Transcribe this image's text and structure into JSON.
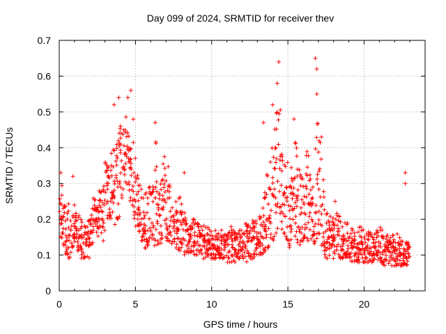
{
  "chart_data": {
    "type": "scatter",
    "title": "Day 099 of 2024, SRMTID for receiver thev",
    "xlabel": "GPS time / hours",
    "ylabel": "SRMTID / TECUs",
    "xlim": [
      0,
      24
    ],
    "ylim": [
      0,
      0.7
    ],
    "xticks": [
      0,
      5,
      10,
      15,
      20
    ],
    "xtick_labels": [
      "0",
      "5",
      "10",
      "15",
      "20"
    ],
    "yticks": [
      0,
      0.1,
      0.2,
      0.3,
      0.4,
      0.5,
      0.6,
      0.7
    ],
    "ytick_labels": [
      "0",
      "0.1",
      "0.2",
      "0.3",
      "0.4",
      "0.5",
      "0.6",
      "0.7"
    ],
    "grid": true,
    "marker": "+",
    "color": "#ff0000",
    "series": [
      {
        "name": "SRMTID",
        "x": [
          0.0,
          0.2,
          0.4,
          0.6,
          0.8,
          1.0,
          1.2,
          1.4,
          1.6,
          1.8,
          2.0,
          2.2,
          2.4,
          2.6,
          2.8,
          3.0,
          3.2,
          3.4,
          3.6,
          3.8,
          4.0,
          4.2,
          4.4,
          4.6,
          4.8,
          5.0,
          5.2,
          5.4,
          5.6,
          5.8,
          6.0,
          6.2,
          6.4,
          6.6,
          6.8,
          7.0,
          7.2,
          7.4,
          7.6,
          7.8,
          8.0,
          8.2,
          8.4,
          8.6,
          8.8,
          9.0,
          9.2,
          9.4,
          9.6,
          9.8,
          10.0,
          10.2,
          10.4,
          10.6,
          10.8,
          11.0,
          11.2,
          11.4,
          11.6,
          11.8,
          12.0,
          12.2,
          12.4,
          12.6,
          12.8,
          13.0,
          13.2,
          13.4,
          13.6,
          13.8,
          14.0,
          14.2,
          14.4,
          14.6,
          14.8,
          15.0,
          15.2,
          15.4,
          15.6,
          15.8,
          16.0,
          16.2,
          16.4,
          16.6,
          16.8,
          17.0,
          17.2,
          17.4,
          17.6,
          17.8,
          18.0,
          18.2,
          18.4,
          18.6,
          18.8,
          19.0,
          19.2,
          19.4,
          19.6,
          19.8,
          20.0,
          20.2,
          20.4,
          20.6,
          20.8,
          21.0,
          21.2,
          21.4,
          21.6,
          21.8,
          22.0,
          22.2,
          22.4,
          22.6,
          22.8
        ],
        "lo": [
          0.14,
          0.1,
          0.1,
          0.09,
          0.12,
          0.13,
          0.11,
          0.09,
          0.09,
          0.09,
          0.13,
          0.16,
          0.15,
          0.16,
          0.14,
          0.19,
          0.2,
          0.22,
          0.18,
          0.2,
          0.25,
          0.3,
          0.28,
          0.24,
          0.2,
          0.18,
          0.16,
          0.14,
          0.12,
          0.12,
          0.1,
          0.1,
          0.12,
          0.13,
          0.14,
          0.14,
          0.13,
          0.13,
          0.12,
          0.11,
          0.11,
          0.1,
          0.1,
          0.1,
          0.1,
          0.1,
          0.1,
          0.09,
          0.09,
          0.09,
          0.09,
          0.09,
          0.09,
          0.09,
          0.08,
          0.08,
          0.08,
          0.08,
          0.09,
          0.09,
          0.09,
          0.08,
          0.08,
          0.09,
          0.09,
          0.1,
          0.1,
          0.11,
          0.12,
          0.13,
          0.14,
          0.16,
          0.18,
          0.16,
          0.14,
          0.12,
          0.11,
          0.11,
          0.12,
          0.13,
          0.14,
          0.14,
          0.12,
          0.12,
          0.14,
          0.16,
          0.12,
          0.09,
          0.09,
          0.09,
          0.1,
          0.1,
          0.09,
          0.09,
          0.09,
          0.08,
          0.08,
          0.08,
          0.08,
          0.08,
          0.08,
          0.08,
          0.08,
          0.08,
          0.08,
          0.08,
          0.07,
          0.07,
          0.07,
          0.07,
          0.07,
          0.07,
          0.07,
          0.07,
          0.07
        ],
        "hi": [
          0.3,
          0.24,
          0.22,
          0.25,
          0.24,
          0.22,
          0.22,
          0.2,
          0.19,
          0.2,
          0.24,
          0.26,
          0.24,
          0.28,
          0.3,
          0.36,
          0.35,
          0.4,
          0.42,
          0.46,
          0.48,
          0.5,
          0.45,
          0.4,
          0.48,
          0.34,
          0.3,
          0.28,
          0.28,
          0.3,
          0.34,
          0.42,
          0.28,
          0.32,
          0.38,
          0.35,
          0.3,
          0.27,
          0.25,
          0.27,
          0.3,
          0.22,
          0.2,
          0.2,
          0.2,
          0.19,
          0.19,
          0.19,
          0.18,
          0.18,
          0.17,
          0.17,
          0.17,
          0.17,
          0.17,
          0.17,
          0.18,
          0.18,
          0.18,
          0.18,
          0.18,
          0.19,
          0.19,
          0.2,
          0.2,
          0.22,
          0.24,
          0.28,
          0.33,
          0.4,
          0.46,
          0.5,
          0.52,
          0.42,
          0.36,
          0.34,
          0.38,
          0.42,
          0.36,
          0.33,
          0.34,
          0.42,
          0.36,
          0.3,
          0.5,
          0.42,
          0.32,
          0.24,
          0.22,
          0.21,
          0.22,
          0.22,
          0.2,
          0.19,
          0.19,
          0.18,
          0.18,
          0.17,
          0.18,
          0.19,
          0.18,
          0.17,
          0.17,
          0.17,
          0.17,
          0.18,
          0.17,
          0.16,
          0.16,
          0.16,
          0.16,
          0.16,
          0.15,
          0.14,
          0.14
        ],
        "outliers": [
          [
            0.1,
            0.33
          ],
          [
            0.9,
            0.32
          ],
          [
            3.6,
            0.52
          ],
          [
            3.9,
            0.54
          ],
          [
            4.5,
            0.54
          ],
          [
            4.7,
            0.56
          ],
          [
            6.3,
            0.47
          ],
          [
            8.2,
            0.33
          ],
          [
            13.4,
            0.47
          ],
          [
            14.0,
            0.52
          ],
          [
            14.3,
            0.58
          ],
          [
            14.4,
            0.64
          ],
          [
            15.4,
            0.48
          ],
          [
            16.8,
            0.65
          ],
          [
            16.9,
            0.62
          ],
          [
            16.9,
            0.55
          ],
          [
            17.2,
            0.43
          ],
          [
            18.1,
            0.25
          ],
          [
            22.7,
            0.33
          ],
          [
            22.7,
            0.3
          ]
        ]
      }
    ]
  }
}
